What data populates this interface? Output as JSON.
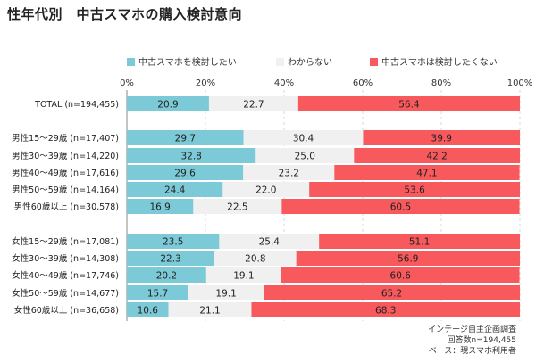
{
  "title": "性年代別　中古スマホの購入検討意向",
  "notes": [
    "インテージ自主企画調査",
    "回答数n=194,455",
    "ベース：現スマホ利用者"
  ],
  "chart_data": {
    "type": "bar",
    "orientation": "horizontal-stacked-100",
    "xticks": [
      "0%",
      "20%",
      "40%",
      "60%",
      "80%",
      "100%"
    ],
    "xlim": [
      0,
      100
    ],
    "colors": [
      "#7ccad7",
      "#f0f0f0",
      "#f7595d"
    ],
    "legend": {
      "position": "top",
      "entries": [
        "中古スマホを検討したい",
        "わからない",
        "中古スマホは検討したくない"
      ]
    },
    "groups": [
      {
        "categories": [
          "TOTAL (n=194,455)"
        ]
      },
      {
        "categories": [
          "男性15～29歳 (n=17,407)",
          "男性30～39歳 (n=14,220)",
          "男性40～49歳 (n=17,616)",
          "男性50～59歳 (n=14,164)",
          "男性60歳以上 (n=30,578)"
        ]
      },
      {
        "categories": [
          "女性15～29歳 (n=17,081)",
          "女性30～39歳 (n=14,308)",
          "女性40～49歳 (n=17,746)",
          "女性50～59歳 (n=14,677)",
          "女性60歳以上 (n=36,658)"
        ]
      }
    ],
    "series": [
      {
        "name": "中古スマホを検討したい",
        "values": [
          20.9,
          29.7,
          32.8,
          29.6,
          24.4,
          16.9,
          23.5,
          22.3,
          20.2,
          15.7,
          10.6
        ]
      },
      {
        "name": "わからない",
        "values": [
          22.7,
          30.4,
          25.0,
          23.2,
          22.0,
          22.5,
          25.4,
          20.8,
          19.1,
          19.1,
          21.1
        ]
      },
      {
        "name": "中古スマホは検討したくない",
        "values": [
          56.4,
          39.9,
          42.2,
          47.1,
          53.6,
          60.5,
          51.1,
          56.9,
          60.6,
          65.2,
          68.3
        ]
      }
    ],
    "value_labels": [
      [
        "20.9",
        "29.7",
        "32.8",
        "29.6",
        "24.4",
        "16.9",
        "23.5",
        "22.3",
        "20.2",
        "15.7",
        "10.6"
      ],
      [
        "22.7",
        "30.4",
        "25.0",
        "23.2",
        "22.0",
        "22.5",
        "25.4",
        "20.8",
        "19.1",
        "19.1",
        "21.1"
      ],
      [
        "56.4",
        "39.9",
        "42.2",
        "47.1",
        "53.6",
        "60.5",
        "51.1",
        "56.9",
        "60.6",
        "65.2",
        "68.3"
      ]
    ]
  }
}
